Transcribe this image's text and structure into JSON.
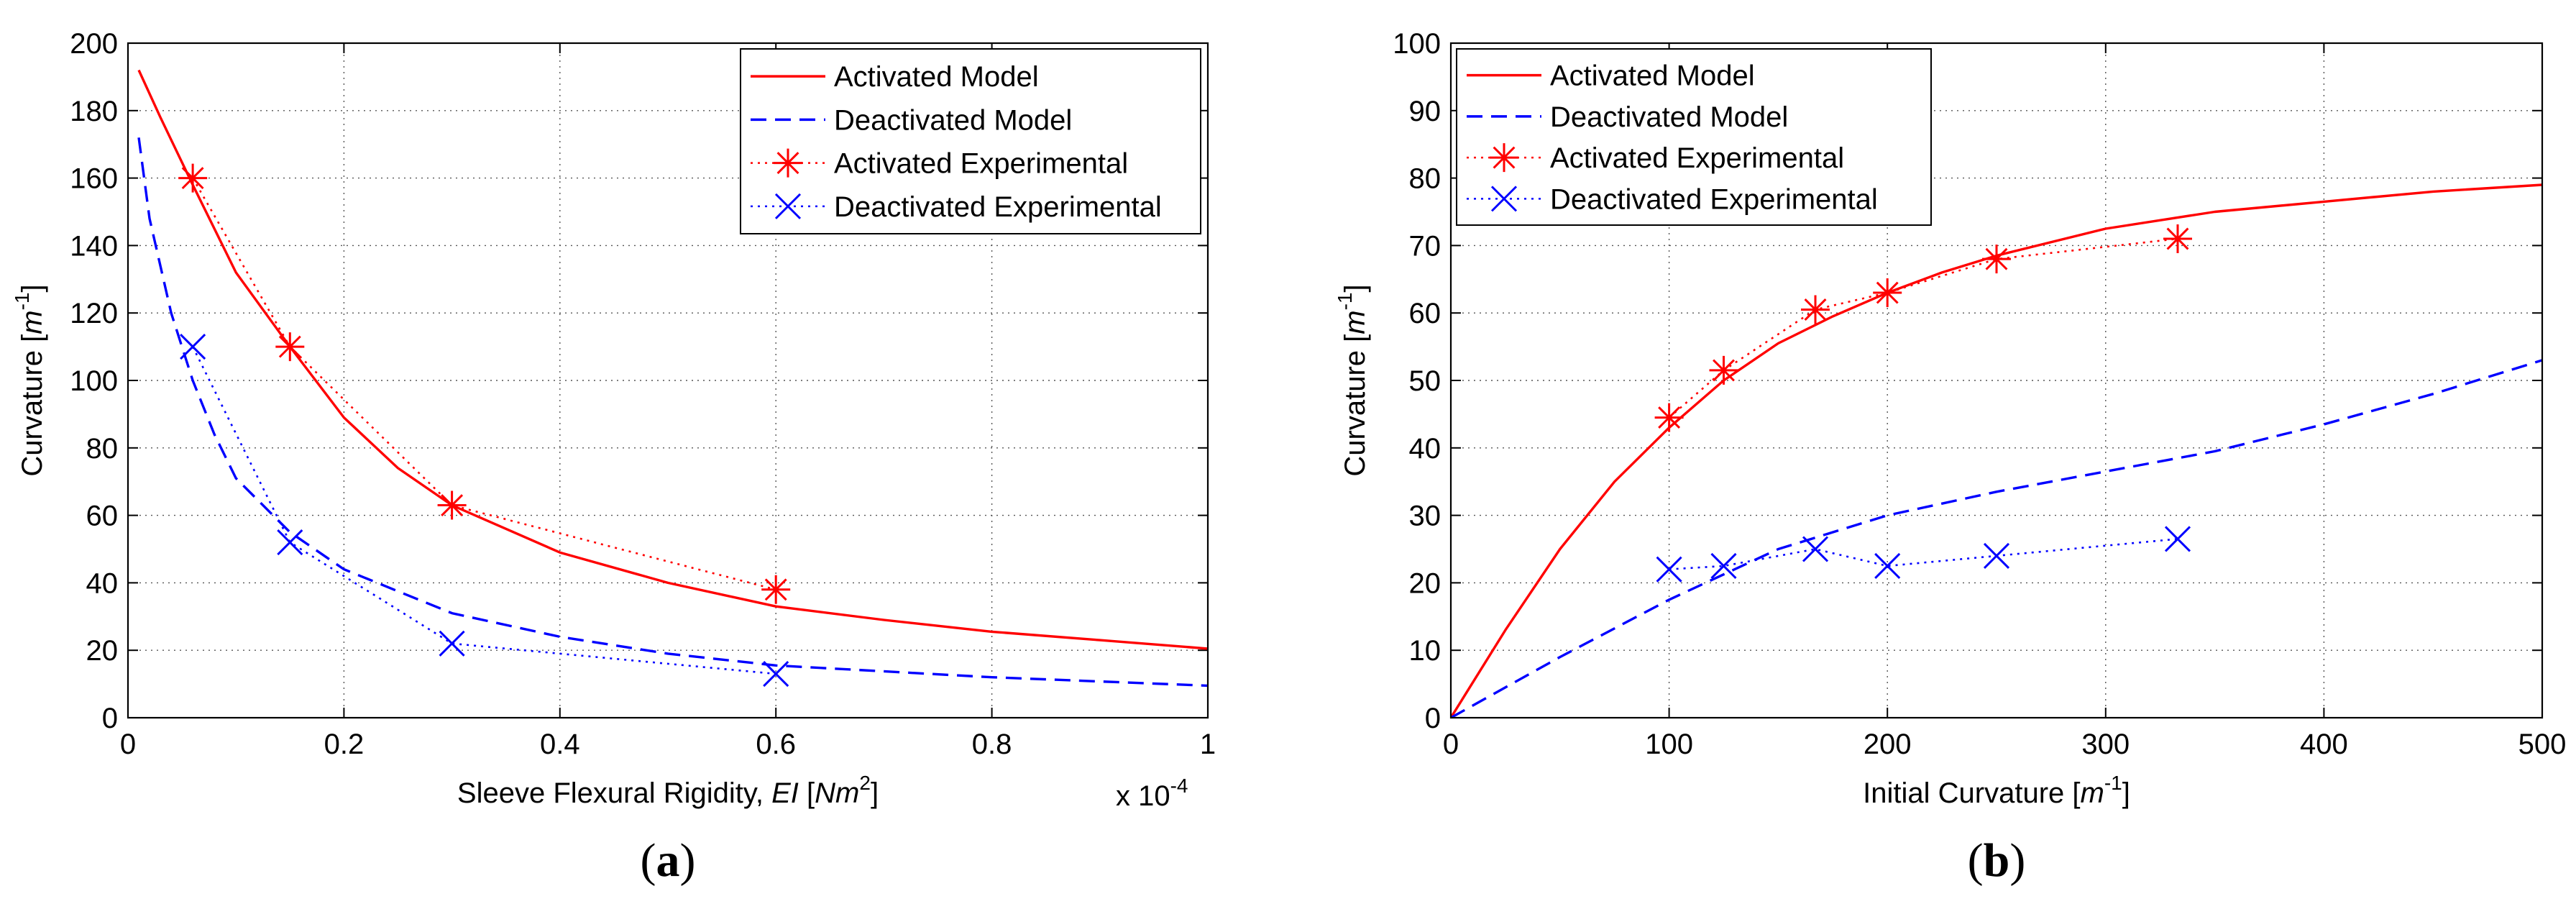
{
  "chart_data": [
    {
      "type": "line",
      "panel_label": "(a)",
      "panel_label_parts": [
        "(",
        "a",
        ")"
      ],
      "title": "",
      "xlabel": "Sleeve Flexural Rigidity,",
      "xlabel_parts": [
        "Sleeve Flexural Rigidity, ",
        "EI",
        " [",
        "Nm",
        "2",
        "]"
      ],
      "ylabel": "Curvature [m^-1]",
      "ylabel_parts": [
        "Curvature [",
        "m",
        "-1",
        "]"
      ],
      "x_multiplier": "x 10-4",
      "x_multiplier_parts": [
        "x 10",
        "-4"
      ],
      "xlim": [
        0,
        1
      ],
      "ylim": [
        0,
        200
      ],
      "xticks": [
        "0",
        "0.2",
        "0.4",
        "0.6",
        "0.8",
        "1"
      ],
      "yticks": [
        "0",
        "20",
        "40",
        "60",
        "80",
        "100",
        "120",
        "140",
        "160",
        "180",
        "200"
      ],
      "grid": true,
      "legend_position": "top-right",
      "series": [
        {
          "name": "Activated Model",
          "color": "#ff0000",
          "style": "solid",
          "marker": "none",
          "x": [
            0.01,
            0.03,
            0.06,
            0.1,
            0.15,
            0.2,
            0.25,
            0.3,
            0.4,
            0.5,
            0.6,
            0.7,
            0.8,
            0.9,
            1.0
          ],
          "y": [
            192,
            178,
            158,
            132,
            110,
            89,
            74,
            63,
            49,
            40,
            33,
            29,
            25.5,
            23,
            20.5
          ]
        },
        {
          "name": "Deactivated Model",
          "color": "#0000ff",
          "style": "dashed",
          "marker": "none",
          "x": [
            0.01,
            0.02,
            0.04,
            0.06,
            0.08,
            0.1,
            0.15,
            0.2,
            0.3,
            0.4,
            0.5,
            0.6,
            0.8,
            1.0
          ],
          "y": [
            172,
            148,
            120,
            100,
            84,
            71,
            55,
            44,
            31,
            24,
            19,
            15.5,
            12,
            9.5
          ]
        },
        {
          "name": "Activated Experimental",
          "color": "#ff0000",
          "style": "dotted",
          "marker": "star",
          "x": [
            0.06,
            0.15,
            0.3,
            0.6
          ],
          "y": [
            160,
            110,
            63,
            38
          ]
        },
        {
          "name": "Deactivated Experimental",
          "color": "#0000ff",
          "style": "dotted",
          "marker": "x",
          "x": [
            0.06,
            0.15,
            0.3,
            0.6
          ],
          "y": [
            110,
            52,
            22,
            13
          ]
        }
      ]
    },
    {
      "type": "line",
      "panel_label": "(b)",
      "panel_label_parts": [
        "(",
        "b",
        ")"
      ],
      "title": "",
      "xlabel": "Initial Curvature [m^-1]",
      "xlabel_parts": [
        "Initial Curvature [",
        "m",
        "-1",
        "]"
      ],
      "ylabel": "Curvature [m^-1]",
      "ylabel_parts": [
        "Curvature [",
        "m",
        "-1",
        "]"
      ],
      "xlim": [
        0,
        500
      ],
      "ylim": [
        0,
        100
      ],
      "xticks": [
        "0",
        "100",
        "200",
        "300",
        "400",
        "500"
      ],
      "yticks": [
        "0",
        "10",
        "20",
        "30",
        "40",
        "50",
        "60",
        "70",
        "80",
        "90",
        "100"
      ],
      "grid": true,
      "legend_position": "top-left",
      "series": [
        {
          "name": "Activated Model",
          "color": "#ff0000",
          "style": "solid",
          "marker": "none",
          "x": [
            0,
            25,
            50,
            75,
            100,
            125,
            150,
            175,
            200,
            225,
            250,
            300,
            350,
            400,
            450,
            500
          ],
          "y": [
            0,
            13,
            25,
            35,
            43,
            50,
            55.5,
            59.5,
            63,
            66,
            68.5,
            72.5,
            75,
            76.5,
            78,
            79
          ]
        },
        {
          "name": "Deactivated Model",
          "color": "#0000ff",
          "style": "dashed",
          "marker": "none",
          "x": [
            0,
            50,
            100,
            150,
            200,
            250,
            300,
            350,
            400,
            450,
            500
          ],
          "y": [
            0,
            9,
            17.5,
            25,
            30,
            33.5,
            36.5,
            39.5,
            43.5,
            48,
            53
          ]
        },
        {
          "name": "Activated Experimental",
          "color": "#ff0000",
          "style": "dotted",
          "marker": "star",
          "x": [
            100,
            125,
            167,
            200,
            250,
            333
          ],
          "y": [
            44.5,
            51.5,
            60.5,
            63,
            68,
            71
          ]
        },
        {
          "name": "Deactivated Experimental",
          "color": "#0000ff",
          "style": "dotted",
          "marker": "x",
          "x": [
            100,
            125,
            167,
            200,
            250,
            333
          ],
          "y": [
            22,
            22.5,
            25,
            22.5,
            24,
            26.5
          ]
        }
      ]
    }
  ]
}
